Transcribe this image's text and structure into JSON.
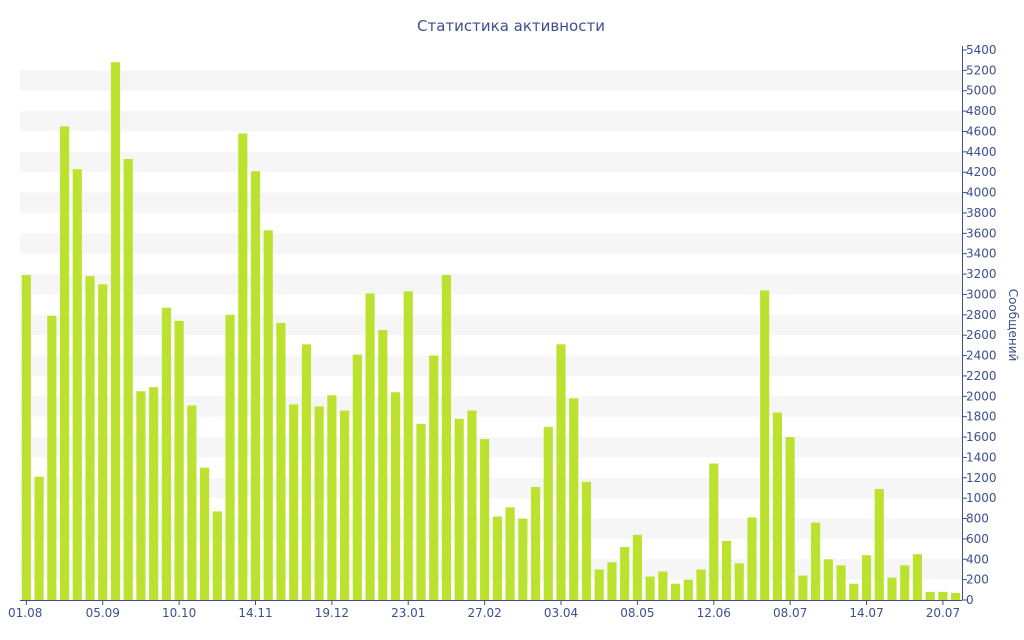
{
  "chart_data": {
    "type": "bar",
    "title": "Статистика активности",
    "xlabel": "",
    "ylabel": "Сообщений",
    "ylim": [
      0,
      5400
    ],
    "y_ticks": [
      0,
      200,
      400,
      600,
      800,
      1000,
      1200,
      1400,
      1600,
      1800,
      2000,
      2200,
      2400,
      2600,
      2800,
      3000,
      3200,
      3400,
      3600,
      3800,
      4000,
      4200,
      4400,
      4600,
      4800,
      5000,
      5200,
      5400
    ],
    "x_tick_labels": [
      {
        "index": 0,
        "label": "01.08"
      },
      {
        "index": 6,
        "label": "05.09"
      },
      {
        "index": 12,
        "label": "10.10"
      },
      {
        "index": 18,
        "label": "14.11"
      },
      {
        "index": 24,
        "label": "19.12"
      },
      {
        "index": 30,
        "label": "23.01"
      },
      {
        "index": 36,
        "label": "27.02"
      },
      {
        "index": 42,
        "label": "03.04"
      },
      {
        "index": 48,
        "label": "08.05"
      },
      {
        "index": 54,
        "label": "12.06"
      },
      {
        "index": 60,
        "label": "08.07"
      },
      {
        "index": 66,
        "label": "14.07"
      },
      {
        "index": 72,
        "label": "20.07"
      }
    ],
    "values": [
      3190,
      1210,
      2790,
      4650,
      4230,
      3180,
      3100,
      5280,
      4330,
      2050,
      2090,
      2870,
      2740,
      1910,
      1300,
      870,
      2800,
      4580,
      4210,
      3630,
      2720,
      1920,
      2510,
      1900,
      2010,
      1860,
      2410,
      3010,
      2650,
      2040,
      3030,
      1730,
      2400,
      3190,
      1780,
      1860,
      1580,
      820,
      910,
      800,
      1110,
      1700,
      2510,
      1980,
      1160,
      300,
      370,
      520,
      640,
      230,
      280,
      160,
      200,
      300,
      1340,
      580,
      360,
      810,
      3040,
      1840,
      1600,
      240,
      760,
      400,
      340,
      160,
      440,
      1090,
      220,
      340,
      450,
      80,
      80,
      70
    ],
    "bar_color": "#bce230",
    "band_color": "#f6f6f6",
    "grid": true,
    "y_axis_position": "right"
  }
}
